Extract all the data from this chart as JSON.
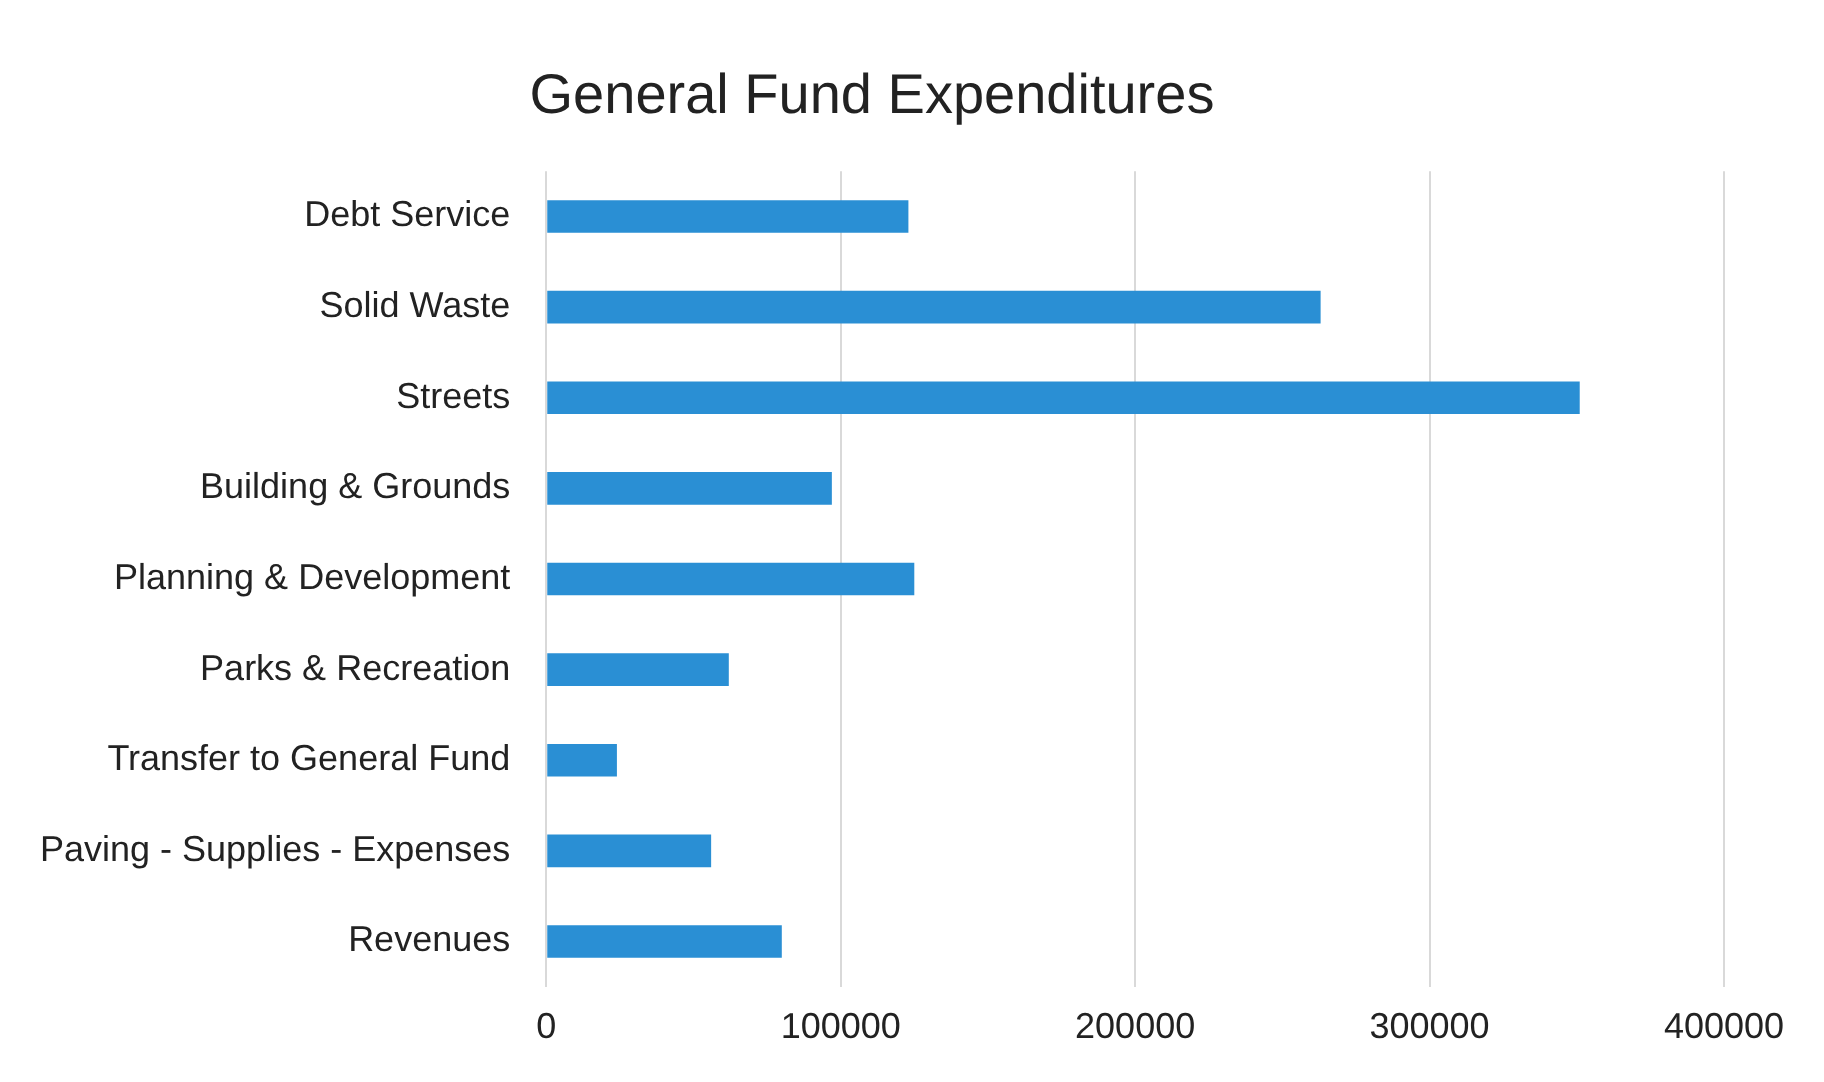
{
  "chart_data": {
    "type": "bar",
    "orientation": "horizontal",
    "title": "General Fund Expenditures",
    "categories": [
      "Debt Service",
      "Solid Waste",
      "Streets",
      "Building & Grounds",
      "Planning & Development",
      "Parks & Recreation",
      "Transfer to General Fund",
      "Paving - Supplies - Expenses",
      "Revenues"
    ],
    "values": [
      123000,
      263000,
      351000,
      97000,
      125000,
      62000,
      24000,
      56000,
      80000
    ],
    "color": "#2a8fd4",
    "xlim": [
      0,
      400000
    ],
    "xticks": [
      0,
      100000,
      200000,
      300000,
      400000
    ],
    "grid": "x",
    "legend": false
  }
}
